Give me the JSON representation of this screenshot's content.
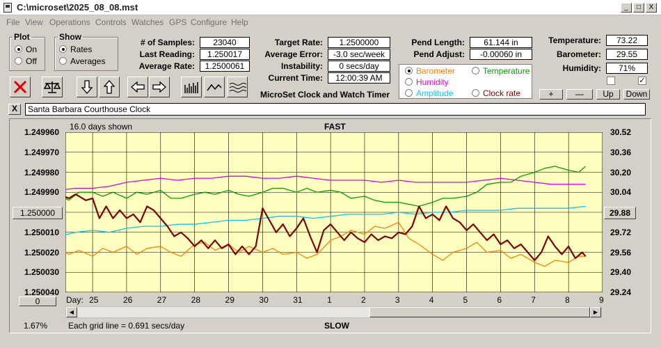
{
  "window": {
    "title": "C:\\microset\\2025_08_08.mst",
    "minimize": "_",
    "maximize": "□",
    "close": "X"
  },
  "menu": [
    "File",
    "View",
    "Operations",
    "Controls",
    "Watches",
    "GPS",
    "Configure",
    "Help"
  ],
  "plot": {
    "legend": "Plot",
    "on": "On",
    "off": "Off"
  },
  "show": {
    "legend": "Show",
    "rates": "Rates",
    "averages": "Averages"
  },
  "stats": {
    "samples_label": "# of Samples:",
    "samples": "23040",
    "last_label": "Last Reading:",
    "last": "1.250017",
    "avg_label": "Average Rate:",
    "avg": "1.2500061"
  },
  "rates": {
    "target_label": "Target Rate:",
    "target": "1.2500000",
    "err_label": "Average Error:",
    "err": "-3.0 sec/week",
    "inst_label": "Instability:",
    "inst": "0 secs/day",
    "time_label": "Current Time:",
    "time": "12:00:39 AM",
    "app_title": "MicroSet Clock and Watch Timer"
  },
  "pend": {
    "length_label": "Pend Length:",
    "length": "61.144 in",
    "adjust_label": "Pend Adjust:",
    "adjust": "-0.00060 in"
  },
  "overlay": {
    "barometer": "Barometer",
    "temperature": "Temperature",
    "humidity": "Humidity",
    "amplitude": "Amplitude",
    "clockrate": "Clock rate",
    "barometer_color": "#ff8000",
    "temperature_color": "#00a000",
    "humidity_color": "#e000e0",
    "amplitude_color": "#00c8ff",
    "clockrate_color": "#800000"
  },
  "env": {
    "temp_label": "Temperature:",
    "temp": "73.22",
    "baro_label": "Barometer:",
    "baro": "29.55",
    "hum_label": "Humidity:",
    "hum": "71%",
    "check2": "✓"
  },
  "scale_buttons": {
    "plus": "+",
    "minus": "—",
    "up": "Up",
    "down": "Down"
  },
  "clock_name": "Santa Barbara Courthouse Clock",
  "close_x": "X",
  "chart_data": {
    "type": "line",
    "title": "FAST",
    "bottom_label": "SLOW",
    "days_shown": "16.0 days shown",
    "grid_note": "Each grid line = 0.691 secs/day",
    "percent": "1.67%",
    "left_center_btn": "1.250000",
    "left_bottom_btn": "0",
    "right_center_btn": "29.88",
    "xlabel": "Day:",
    "x_days": [
      "25",
      "26",
      "27",
      "28",
      "29",
      "30",
      "31",
      "1",
      "2",
      "3",
      "4",
      "5",
      "6",
      "7",
      "8",
      "9"
    ],
    "y_left_ticks": [
      "1.249960",
      "1.249970",
      "1.249980",
      "1.249990",
      "",
      "1.250010",
      "1.250020",
      "1.250030",
      "1.250040"
    ],
    "y_right_ticks": [
      "30.52",
      "30.36",
      "30.20",
      "30.04",
      "",
      "29.72",
      "29.56",
      "29.40",
      "29.24"
    ],
    "ylim_left": [
      1.24996,
      1.25004
    ],
    "series": [
      {
        "name": "Humidity",
        "color": "#e000e0",
        "points": [
          [
            24.0,
            1.249989
          ],
          [
            24.5,
            1.249988
          ],
          [
            25,
            1.249988
          ],
          [
            25.5,
            1.249987
          ],
          [
            26,
            1.249985
          ],
          [
            26.5,
            1.249984
          ],
          [
            27,
            1.249983
          ],
          [
            27.5,
            1.249984
          ],
          [
            28,
            1.249983
          ],
          [
            28.5,
            1.249983
          ],
          [
            29,
            1.249982
          ],
          [
            29.5,
            1.249982
          ],
          [
            30,
            1.249983
          ],
          [
            30.5,
            1.249983
          ],
          [
            31,
            1.249982
          ],
          [
            31.5,
            1.249983
          ],
          [
            32,
            1.249984
          ],
          [
            32.5,
            1.249984
          ],
          [
            33,
            1.249984
          ],
          [
            33.5,
            1.249985
          ],
          [
            34,
            1.249984
          ],
          [
            34.5,
            1.249985
          ],
          [
            35,
            1.249985
          ],
          [
            35.5,
            1.249985
          ],
          [
            36,
            1.249985
          ],
          [
            36.5,
            1.249984
          ],
          [
            37,
            1.249983
          ],
          [
            37.5,
            1.249984
          ],
          [
            38,
            1.249985
          ],
          [
            38.5,
            1.249986
          ],
          [
            39,
            1.249986
          ],
          [
            39.5,
            1.249986
          ]
        ]
      },
      {
        "name": "Temperature",
        "color": "#00a000",
        "points": [
          [
            24.0,
            1.249991
          ],
          [
            24.3,
            1.249994
          ],
          [
            24.6,
            1.24999
          ],
          [
            25,
            1.24999
          ],
          [
            25.3,
            1.249992
          ],
          [
            25.6,
            1.24999
          ],
          [
            26,
            1.249993
          ],
          [
            26.3,
            1.24999
          ],
          [
            26.6,
            1.249991
          ],
          [
            27,
            1.249989
          ],
          [
            27.3,
            1.249993
          ],
          [
            27.6,
            1.249993
          ],
          [
            28,
            1.249991
          ],
          [
            28.3,
            1.24999
          ],
          [
            28.6,
            1.249991
          ],
          [
            29,
            1.249989
          ],
          [
            29.3,
            1.249991
          ],
          [
            29.6,
            1.249992
          ],
          [
            30,
            1.24999
          ],
          [
            30.3,
            1.249988
          ],
          [
            30.6,
            1.249988
          ],
          [
            31,
            1.24999
          ],
          [
            31.3,
            1.249988
          ],
          [
            31.6,
            1.24999
          ],
          [
            32,
            1.249989
          ],
          [
            32.3,
            1.24999
          ],
          [
            32.6,
            1.249993
          ],
          [
            33,
            1.249992
          ],
          [
            33.3,
            1.249994
          ],
          [
            33.6,
            1.249995
          ],
          [
            34,
            1.249995
          ],
          [
            34.3,
            1.249996
          ],
          [
            34.6,
            1.249997
          ],
          [
            35,
            1.249995
          ],
          [
            35.3,
            1.249993
          ],
          [
            35.6,
            1.249993
          ],
          [
            36,
            1.249992
          ],
          [
            36.3,
            1.24999
          ],
          [
            36.6,
            1.249986
          ],
          [
            37,
            1.249985
          ],
          [
            37.3,
            1.249985
          ],
          [
            37.6,
            1.249982
          ],
          [
            38,
            1.24998
          ],
          [
            38.3,
            1.249978
          ],
          [
            38.6,
            1.249977
          ],
          [
            39,
            1.249979
          ],
          [
            39.3,
            1.24998
          ],
          [
            39.5,
            1.249977
          ]
        ]
      },
      {
        "name": "Amplitude",
        "color": "#00c8ff",
        "points": [
          [
            24.0,
            1.250012
          ],
          [
            24.5,
            1.25001
          ],
          [
            25,
            1.250009
          ],
          [
            25.5,
            1.25001
          ],
          [
            26,
            1.250008
          ],
          [
            26.5,
            1.250007
          ],
          [
            27,
            1.250007
          ],
          [
            27.5,
            1.250006
          ],
          [
            28,
            1.250006
          ],
          [
            28.5,
            1.250005
          ],
          [
            29,
            1.250004
          ],
          [
            29.5,
            1.250004
          ],
          [
            30,
            1.250003
          ],
          [
            30.5,
            1.250002
          ],
          [
            31,
            1.250002
          ],
          [
            31.5,
            1.250003
          ],
          [
            32,
            1.250002
          ],
          [
            32.5,
            1.250001
          ],
          [
            33,
            1.250001
          ],
          [
            33.5,
            1.250001
          ],
          [
            34,
            1.25
          ],
          [
            34.5,
            1.250001
          ],
          [
            35,
            1.25
          ],
          [
            35.5,
            1.25
          ],
          [
            36,
            1.249999
          ],
          [
            36.5,
            1.249999
          ],
          [
            37,
            1.249999
          ],
          [
            37.5,
            1.249998
          ],
          [
            38,
            1.249998
          ],
          [
            38.5,
            1.249998
          ],
          [
            39,
            1.249998
          ],
          [
            39.5,
            1.249997
          ]
        ]
      },
      {
        "name": "Barometer",
        "color": "#ff8000",
        "points": [
          [
            24.0,
            1.250018
          ],
          [
            24.3,
            1.250021
          ],
          [
            24.6,
            1.250019
          ],
          [
            25,
            1.250022
          ],
          [
            25.3,
            1.250018
          ],
          [
            25.6,
            1.25002
          ],
          [
            26,
            1.250017
          ],
          [
            26.3,
            1.250021
          ],
          [
            26.6,
            1.250018
          ],
          [
            27,
            1.250017
          ],
          [
            27.3,
            1.25002
          ],
          [
            27.6,
            1.250022
          ],
          [
            28,
            1.250016
          ],
          [
            28.3,
            1.250015
          ],
          [
            28.6,
            1.250019
          ],
          [
            29,
            1.250016
          ],
          [
            29.3,
            1.25002
          ],
          [
            29.6,
            1.250017
          ],
          [
            30,
            1.25002
          ],
          [
            30.3,
            1.250018
          ],
          [
            30.6,
            1.250021
          ],
          [
            31,
            1.25002
          ],
          [
            31.3,
            1.250023
          ],
          [
            31.6,
            1.250021
          ],
          [
            32,
            1.250014
          ],
          [
            32.3,
            1.250012
          ],
          [
            32.6,
            1.250009
          ],
          [
            33,
            1.250011
          ],
          [
            33.3,
            1.250007
          ],
          [
            33.6,
            1.250008
          ],
          [
            34,
            1.250005
          ],
          [
            34.3,
            1.250013
          ],
          [
            34.6,
            1.250016
          ],
          [
            35,
            1.250021
          ],
          [
            35.3,
            1.250024
          ],
          [
            35.6,
            1.25002
          ],
          [
            36,
            1.250018
          ],
          [
            36.3,
            1.250015
          ],
          [
            36.6,
            1.25002
          ],
          [
            37,
            1.250019
          ],
          [
            37.3,
            1.250023
          ],
          [
            37.6,
            1.250021
          ],
          [
            38,
            1.250025
          ],
          [
            38.3,
            1.250027
          ],
          [
            38.6,
            1.250024
          ],
          [
            39,
            1.250025
          ],
          [
            39.3,
            1.250022
          ],
          [
            39.5,
            1.250022
          ]
        ]
      },
      {
        "name": "Clock rate",
        "color": "#800000",
        "points": [
          [
            24.0,
            1.249991
          ],
          [
            24.3,
            1.249993
          ],
          [
            24.5,
            1.249991
          ],
          [
            24.8,
            1.249994
          ],
          [
            25,
            1.249993
          ],
          [
            25.2,
            1.250003
          ],
          [
            25.4,
            1.249997
          ],
          [
            25.6,
            1.250003
          ],
          [
            25.8,
            1.249999
          ],
          [
            26,
            1.250003
          ],
          [
            26.2,
            1.250001
          ],
          [
            26.4,
            1.250005
          ],
          [
            26.6,
            1.249997
          ],
          [
            26.8,
            1.249999
          ],
          [
            27,
            1.250003
          ],
          [
            27.2,
            1.250007
          ],
          [
            27.4,
            1.250012
          ],
          [
            27.6,
            1.25001
          ],
          [
            27.8,
            1.250013
          ],
          [
            28,
            1.250017
          ],
          [
            28.2,
            1.250014
          ],
          [
            28.4,
            1.250018
          ],
          [
            28.6,
            1.250014
          ],
          [
            28.8,
            1.250018
          ],
          [
            29,
            1.250016
          ],
          [
            29.2,
            1.250021
          ],
          [
            29.4,
            1.250017
          ],
          [
            29.6,
            1.250021
          ],
          [
            29.8,
            1.250017
          ],
          [
            30,
            1.249998
          ],
          [
            30.2,
            1.250004
          ],
          [
            30.4,
            1.25001
          ],
          [
            30.6,
            1.250006
          ],
          [
            30.8,
            1.250012
          ],
          [
            31,
            1.250008
          ],
          [
            31.2,
            1.250003
          ],
          [
            31.4,
            1.250012
          ],
          [
            31.6,
            1.25002
          ],
          [
            31.8,
            1.250009
          ],
          [
            32,
            1.250006
          ],
          [
            32.2,
            1.25001
          ],
          [
            32.4,
            1.250014
          ],
          [
            32.6,
            1.25001
          ],
          [
            32.8,
            1.250013
          ],
          [
            33,
            1.250015
          ],
          [
            33.2,
            1.250011
          ],
          [
            33.4,
            1.250014
          ],
          [
            33.6,
            1.250012
          ],
          [
            33.8,
            1.250013
          ],
          [
            34,
            1.25001
          ],
          [
            34.2,
            1.250011
          ],
          [
            34.4,
            1.250007
          ],
          [
            34.6,
            1.249997
          ],
          [
            34.8,
            1.250003
          ],
          [
            35,
            1.250001
          ],
          [
            35.2,
            1.250004
          ],
          [
            35.4,
            1.249997
          ],
          [
            35.6,
            1.250003
          ],
          [
            35.8,
            1.250005
          ],
          [
            36,
            1.250009
          ],
          [
            36.2,
            1.250006
          ],
          [
            36.4,
            1.25001
          ],
          [
            36.6,
            1.250014
          ],
          [
            36.8,
            1.250011
          ],
          [
            37,
            1.250016
          ],
          [
            37.2,
            1.250014
          ],
          [
            37.4,
            1.250018
          ],
          [
            37.6,
            1.250016
          ],
          [
            37.8,
            1.25002
          ],
          [
            38,
            1.250024
          ],
          [
            38.2,
            1.25002
          ],
          [
            38.4,
            1.250012
          ],
          [
            38.6,
            1.250017
          ],
          [
            38.8,
            1.250021
          ],
          [
            39,
            1.250017
          ],
          [
            39.2,
            1.250023
          ],
          [
            39.4,
            1.25002
          ],
          [
            39.5,
            1.250022
          ]
        ]
      }
    ]
  }
}
